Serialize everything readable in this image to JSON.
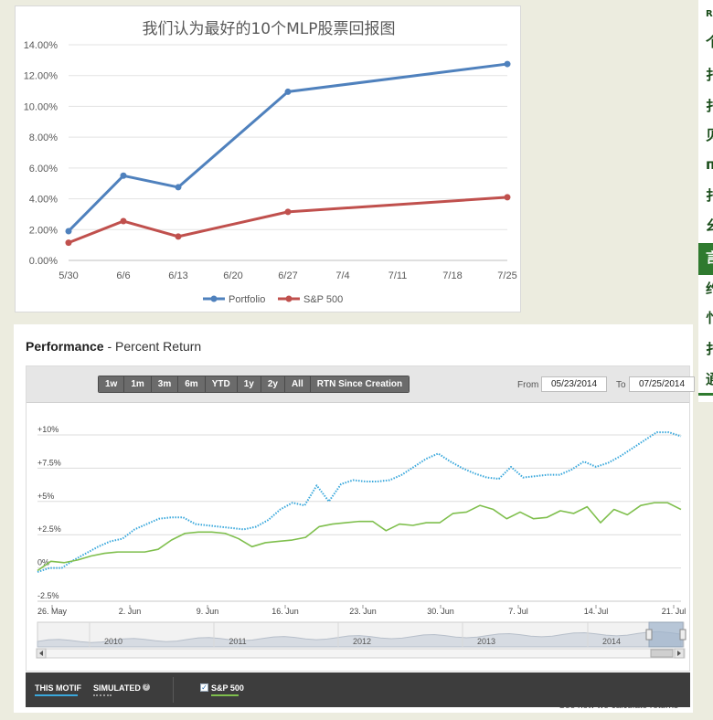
{
  "colors": {
    "portfolio_top": "#4f81bd",
    "sp500_top": "#c0504d",
    "motif_line": "#3aa8dc",
    "sp500_line": "#7fbf4d",
    "sidebar_active": "#2f7a2f",
    "footer_bg": "#3d3d3d"
  },
  "sidebar": {
    "items": [
      "R",
      "个",
      "扌",
      "扌",
      "贝",
      "п",
      "扌",
      "幺",
      "言",
      "约",
      "忄",
      "扌",
      "通"
    ]
  },
  "chart_data": [
    {
      "type": "line",
      "title": "我们认为最好的10个MLP股票回报图",
      "categories": [
        "5/30",
        "6/6",
        "6/13",
        "6/20",
        "6/27",
        "7/4",
        "7/11",
        "7/18",
        "7/25"
      ],
      "y_ticks": [
        "0.00%",
        "2.00%",
        "4.00%",
        "6.00%",
        "8.00%",
        "10.00%",
        "12.00%",
        "14.00%"
      ],
      "ylim": [
        0,
        14
      ],
      "grid": true,
      "legend": "bottom",
      "series": [
        {
          "name": "Portfolio",
          "points": [
            {
              "x": 0,
              "y": 1.9
            },
            {
              "x": 1,
              "y": 5.5
            },
            {
              "x": 2,
              "y": 4.75
            },
            {
              "x": 4,
              "y": 10.95
            },
            {
              "x": 8,
              "y": 12.75
            }
          ]
        },
        {
          "name": "S&P 500",
          "points": [
            {
              "x": 0,
              "y": 1.15
            },
            {
              "x": 1,
              "y": 2.55
            },
            {
              "x": 2,
              "y": 1.55
            },
            {
              "x": 4,
              "y": 3.15
            },
            {
              "x": 8,
              "y": 4.1
            }
          ]
        }
      ]
    },
    {
      "type": "line",
      "title": "Performance",
      "subtitle": "Percent Return",
      "x_ticks": [
        "26. May",
        "2. Jun",
        "9. Jun",
        "16. Jun",
        "23. Jun",
        "30. Jun",
        "7. Jul",
        "14. Jul",
        "21. Jul"
      ],
      "y_ticks": [
        "-2.5%",
        "0%",
        "+2.5%",
        "+5%",
        "+7.5%",
        "+10%"
      ],
      "ylim": [
        -2.5,
        10
      ],
      "grid": true,
      "series": [
        {
          "name": "THIS MOTIF",
          "style": "dotted",
          "values": [
            -0.3,
            0.0,
            0.0,
            0.6,
            1.1,
            1.6,
            2.0,
            2.2,
            2.9,
            3.3,
            3.7,
            3.8,
            3.8,
            3.3,
            3.2,
            3.1,
            3.0,
            2.9,
            3.1,
            3.6,
            4.4,
            4.9,
            4.7,
            6.2,
            5.0,
            6.3,
            6.6,
            6.5,
            6.5,
            6.6,
            7.0,
            7.6,
            8.2,
            8.6,
            8.0,
            7.5,
            7.1,
            6.8,
            6.7,
            7.6,
            6.8,
            6.9,
            7.0,
            7.0,
            7.4,
            8.0,
            7.6,
            7.9,
            8.4,
            9.0,
            9.6,
            10.2,
            10.2,
            9.9
          ]
        },
        {
          "name": "S&P 500",
          "style": "solid",
          "values": [
            -0.2,
            0.5,
            0.4,
            0.6,
            0.9,
            1.1,
            1.2,
            1.2,
            1.2,
            1.4,
            2.1,
            2.6,
            2.7,
            2.7,
            2.6,
            2.2,
            1.6,
            1.9,
            2.0,
            2.1,
            2.3,
            3.1,
            3.3,
            3.4,
            3.5,
            3.5,
            2.8,
            3.3,
            3.2,
            3.4,
            3.4,
            4.1,
            4.2,
            4.7,
            4.4,
            3.7,
            4.2,
            3.7,
            3.8,
            4.3,
            4.1,
            4.6,
            3.4,
            4.4,
            4.0,
            4.7,
            4.9,
            4.9,
            4.4
          ]
        }
      ],
      "navigator": {
        "years": [
          "2010",
          "2011",
          "2012",
          "2013",
          "2014"
        ]
      }
    }
  ],
  "perf": {
    "title_bold": "Performance",
    "title_rest": " - Percent Return",
    "range_buttons": [
      "1w",
      "1m",
      "3m",
      "6m",
      "YTD",
      "1y",
      "2y",
      "All",
      "RTN Since Creation"
    ],
    "from_label": "From",
    "from_value": "05/23/2014",
    "to_label": "To",
    "to_value": "07/25/2014",
    "see_how": "See how we calculate returns",
    "footer": {
      "this_motif": "THIS MOTIF",
      "simulated": "SIMULATED",
      "help_glyph": "?",
      "sp500": "S&P 500",
      "check_glyph": "✓"
    }
  }
}
